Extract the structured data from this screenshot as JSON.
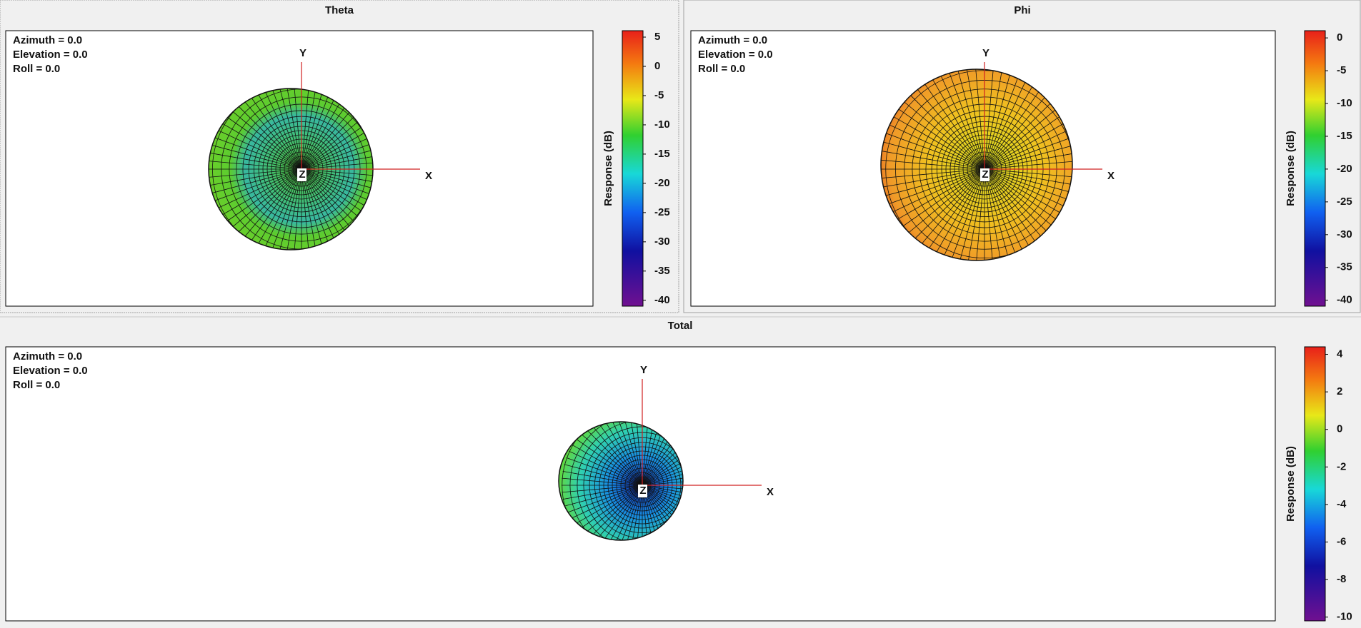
{
  "panels": [
    {
      "title": "Theta",
      "view": [
        "Azimuth = 0.0",
        "Elevation = 0.0",
        "Roll = 0.0"
      ],
      "axes": [
        "Y",
        "X",
        "Z"
      ],
      "colorbar": {
        "label": "Response (dB)",
        "ylim": [
          -41,
          6.1
        ],
        "yticks": [
          5,
          0,
          -5,
          -10,
          -15,
          -20,
          -25,
          -30,
          -35,
          -40
        ]
      }
    },
    {
      "title": "Phi",
      "view": [
        "Azimuth = 0.0",
        "Elevation = 0.0",
        "Roll = 0.0"
      ],
      "axes": [
        "Y",
        "X",
        "Z"
      ],
      "colorbar": {
        "label": "Response (dB)",
        "ylim": [
          -40.9,
          1.1
        ],
        "yticks": [
          0,
          -5,
          -10,
          -15,
          -20,
          -25,
          -30,
          -35,
          -40
        ]
      }
    },
    {
      "title": "Total",
      "view": [
        "Azimuth = 0.0",
        "Elevation = 0.0",
        "Roll = 0.0"
      ],
      "axes": [
        "Y",
        "X",
        "Z"
      ],
      "colorbar": {
        "label": "Response (dB)",
        "ylim": [
          -10.2,
          4.4
        ],
        "yticks": [
          4,
          2,
          0,
          -2,
          -4,
          -6,
          -8,
          -10
        ]
      }
    }
  ]
}
